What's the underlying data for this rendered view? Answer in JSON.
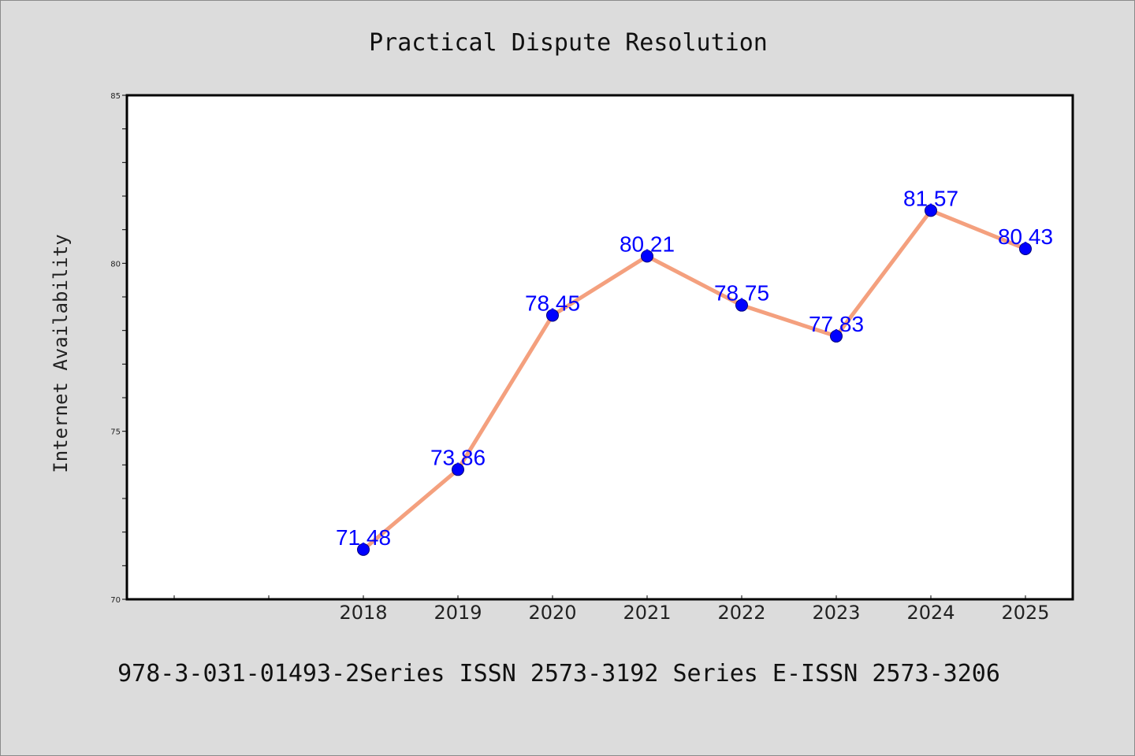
{
  "chart_data": {
    "type": "line",
    "title": "Practical Dispute Resolution",
    "ylabel": "Internet Availability",
    "xlabel": "",
    "footer": "978-3-031-01493-2Series ISSN 2573-3192 Series E-ISSN 2573-3206",
    "categories": [
      "2018",
      "2019",
      "2020",
      "2021",
      "2022",
      "2023",
      "2024",
      "2025"
    ],
    "values": [
      71.48,
      73.86,
      78.45,
      80.21,
      78.75,
      77.83,
      81.57,
      80.43
    ],
    "data_labels": [
      "71.48",
      "73.86",
      "78.45",
      "80.21",
      "78.75",
      "77.83",
      "81.57",
      "80.43"
    ],
    "ylim": [
      70,
      85
    ],
    "yticks": [
      70,
      75,
      80,
      85
    ],
    "ytick_labels": [
      "70",
      "75",
      "80",
      "85"
    ],
    "yminor_step": 1,
    "grid": false,
    "line_color": "#f4a07e",
    "marker_color": "#0000ff",
    "label_color": "#0000ff"
  }
}
